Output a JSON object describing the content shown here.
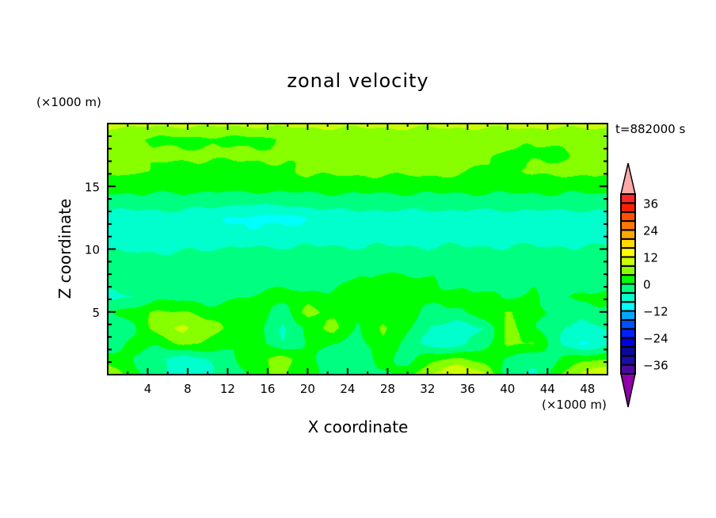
{
  "chart_data": {
    "type": "heatmap",
    "title": "zonal velocity",
    "xlabel": "X coordinate",
    "ylabel": "Z coordinate",
    "x_unit": "(×1000 m)",
    "y_unit": "(×1000 m)",
    "annotation": "t=882000 s",
    "xlim": [
      0,
      50
    ],
    "ylim": [
      0,
      20
    ],
    "x_ticks": [
      "4",
      "8",
      "12",
      "16",
      "20",
      "24",
      "28",
      "32",
      "36",
      "40",
      "44",
      "48"
    ],
    "y_ticks": [
      "5",
      "10",
      "15"
    ],
    "grid_x": [
      0,
      2.5,
      5,
      7.5,
      10,
      12.5,
      15,
      17.5,
      20,
      22.5,
      25,
      27.5,
      30,
      32.5,
      35,
      37.5,
      40,
      42.5,
      45,
      47.5,
      50
    ],
    "grid_z": [
      0,
      1.25,
      2.5,
      3.75,
      5,
      6.25,
      7.5,
      8.75,
      10,
      11.25,
      12.5,
      13.75,
      15,
      16.25,
      17.5,
      18.75,
      20
    ],
    "values": [
      [
        6,
        2,
        -3,
        -5,
        -4,
        -2,
        2,
        5,
        2,
        -2,
        -2,
        -1,
        2,
        9,
        13,
        9,
        -2,
        -6,
        3,
        10,
        12
      ],
      [
        3,
        0,
        -4,
        -6,
        -4,
        -1,
        3,
        6,
        1,
        -3,
        -2,
        1,
        -1,
        3,
        5,
        3,
        -1,
        -3,
        0,
        3,
        4
      ],
      [
        -3,
        1,
        1,
        5,
        3,
        1,
        2,
        -4,
        1,
        0,
        -1,
        3,
        -2,
        -6,
        -6,
        -2,
        5,
        4,
        -3,
        -9,
        -5
      ],
      [
        -3,
        -1,
        6,
        9,
        6,
        2,
        2,
        -5,
        1,
        6,
        -1,
        5,
        1,
        -5,
        -6,
        -4,
        5,
        1,
        -3,
        -6,
        -3
      ],
      [
        -1,
        2,
        5,
        4,
        2,
        2,
        1,
        -2,
        6,
        2,
        1,
        3,
        1,
        -1,
        -1,
        2,
        5,
        1,
        -1,
        -2,
        -1
      ],
      [
        -5,
        -4,
        -2,
        -1,
        -2,
        -1,
        1,
        2,
        1,
        1,
        2,
        2,
        1,
        1,
        1,
        1,
        -1,
        1,
        -2,
        1,
        1
      ],
      [
        -2,
        -2,
        -2,
        -2,
        -2,
        -2,
        -2,
        -2,
        -2,
        -1,
        0.5,
        1,
        1,
        0.5,
        -1,
        -2,
        -2,
        -1,
        -2,
        -2,
        -2
      ],
      [
        -1.5,
        -1.5,
        -1.5,
        -1.5,
        -1.5,
        -1.5,
        -1.5,
        -1.5,
        -1.5,
        -1.5,
        -1.5,
        -1.5,
        -1.5,
        -1.5,
        -1.5,
        -1.5,
        -1.5,
        -1.5,
        -1.5,
        -1.5,
        -1.5
      ],
      [
        -4.5,
        -4.5,
        -4.5,
        -4.5,
        -4,
        -3.5,
        -3.5,
        -3.5,
        -3.5,
        -3.5,
        -3.5,
        -3.5,
        -3.5,
        -3.5,
        -3.5,
        -3.5,
        -3.5,
        -3.5,
        -3.5,
        -3.5,
        -3.5
      ],
      [
        -6,
        -6,
        -6,
        -6,
        -6,
        -7,
        -7,
        -7,
        -6,
        -6,
        -6,
        -6,
        -6,
        -6,
        -6,
        -6,
        -6,
        -6,
        -6,
        -6,
        -6
      ],
      [
        -6,
        -6,
        -6,
        -6,
        -6,
        -8.5,
        -9,
        -9,
        -8,
        -6,
        -6,
        -6,
        -6,
        -6,
        -6,
        -6,
        -6,
        -6,
        -6,
        -6,
        -6
      ],
      [
        -2,
        -2,
        -2,
        -2,
        -3,
        -3,
        -3,
        -3,
        -2,
        -2,
        -2,
        -2,
        -2,
        -2,
        -2,
        -2,
        -2,
        -2,
        -2,
        -2,
        -2
      ],
      [
        1.5,
        1.5,
        1.5,
        1.5,
        1.5,
        1.5,
        1.5,
        1.5,
        1.5,
        1.5,
        1.5,
        1.5,
        1.5,
        1.5,
        1.5,
        1.5,
        1.5,
        1.5,
        1.5,
        1.5,
        1.5
      ],
      [
        5,
        5,
        3,
        2,
        2,
        2,
        2,
        3,
        5,
        5,
        5,
        5,
        5,
        5,
        5,
        3,
        3,
        5,
        5,
        5,
        5
      ],
      [
        5,
        5,
        5,
        5,
        5,
        5,
        5,
        5,
        5,
        5,
        5,
        5,
        5,
        5,
        5,
        5,
        3,
        3,
        3,
        5,
        5
      ],
      [
        5,
        4,
        3,
        3,
        3,
        3,
        3,
        4,
        5,
        5,
        5,
        5,
        5,
        5,
        5,
        5,
        5,
        5,
        5,
        5,
        5
      ],
      [
        9,
        9,
        9,
        9,
        9,
        9,
        9,
        9,
        9,
        9,
        9,
        9,
        9,
        9,
        9,
        9,
        9,
        9,
        9,
        9,
        9
      ]
    ],
    "colorbar": {
      "levels": [
        -40,
        -36,
        -32,
        -28,
        -24,
        -20,
        -16,
        -12,
        -8,
        -4,
        0,
        4,
        8,
        12,
        16,
        20,
        24,
        28,
        32,
        36,
        40
      ],
      "tick_labels": [
        "36",
        "24",
        "12",
        "0",
        "−12",
        "−24",
        "−36"
      ],
      "tick_values": [
        36,
        24,
        12,
        0,
        -12,
        -24,
        -36
      ],
      "colors": [
        "#4a0aa0",
        "#1a0ca8",
        "#0a0a9a",
        "#0000e0",
        "#0020ff",
        "#0050ff",
        "#00a8ff",
        "#00ffff",
        "#00ffcc",
        "#00ff80",
        "#00ff00",
        "#88ff00",
        "#ccff00",
        "#ffff00",
        "#ffd800",
        "#ffa800",
        "#ff7800",
        "#ff5000",
        "#ff2000",
        "#ff2828"
      ],
      "over_color": "#ffa8a8",
      "under_color": "#9000a8"
    }
  }
}
